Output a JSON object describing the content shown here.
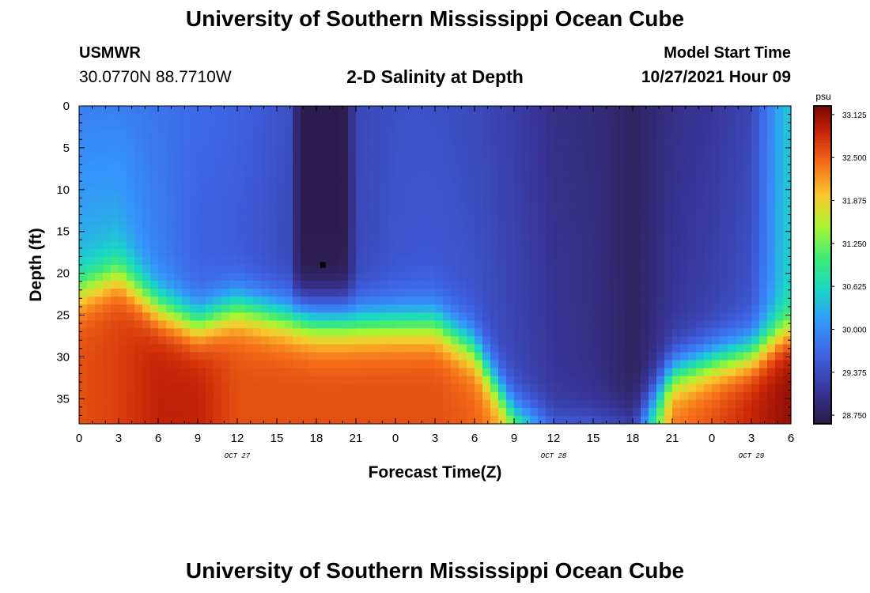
{
  "header": {
    "title": "University of Southern Mississippi Ocean Cube",
    "station_name": "USMWR",
    "station_coords": "30.0770N  88.7710W",
    "plot_title": "2-D Salinity at Depth",
    "model_start_label": "Model Start Time",
    "model_start_value": "10/27/2021 Hour 09"
  },
  "footer": {
    "title": "University of Southern Mississippi Ocean Cube"
  },
  "chart_data": {
    "type": "heatmap",
    "title": "2-D Salinity at Depth",
    "xlabel": "Forecast Time(Z)",
    "ylabel": "Depth (ft)",
    "x_tick_labels": [
      "0",
      "3",
      "6",
      "9",
      "12",
      "15",
      "18",
      "21",
      "0",
      "3",
      "6",
      "9",
      "12",
      "15",
      "18",
      "21",
      "0",
      "3",
      "6"
    ],
    "date_labels": [
      {
        "label": "OCT 27",
        "at_hour": 12
      },
      {
        "label": "OCT 28",
        "at_hour": 36
      },
      {
        "label": "OCT 29",
        "at_hour": 51
      }
    ],
    "xlim_hours": [
      0,
      54
    ],
    "ylim_ft": [
      0,
      38
    ],
    "y_ticks": [
      0,
      5,
      10,
      15,
      20,
      25,
      30,
      35
    ],
    "colorbar": {
      "unit": "psu",
      "ticks": [
        "33.125",
        "32.500",
        "31.875",
        "31.250",
        "30.625",
        "30.000",
        "29.375",
        "28.750"
      ],
      "range": [
        28.625,
        33.25
      ]
    },
    "marker": {
      "hour": 18.5,
      "depth_ft": 19
    },
    "layers_psu_by_hour": [
      {
        "hour": 0,
        "surface": 29.9,
        "mid": 30.3,
        "bottom": 32.6,
        "interface_ft": 22
      },
      {
        "hour": 3,
        "surface": 29.9,
        "mid": 30.3,
        "bottom": 32.7,
        "interface_ft": 20
      },
      {
        "hour": 6,
        "surface": 29.8,
        "mid": 29.9,
        "bottom": 32.9,
        "interface_ft": 24
      },
      {
        "hour": 9,
        "surface": 29.7,
        "mid": 29.6,
        "bottom": 32.9,
        "interface_ft": 26
      },
      {
        "hour": 12,
        "surface": 29.7,
        "mid": 29.6,
        "bottom": 32.6,
        "interface_ft": 24
      },
      {
        "hour": 15,
        "surface": 29.7,
        "mid": 29.6,
        "bottom": 32.6,
        "interface_ft": 25
      },
      {
        "hour": 18,
        "surface": 29.7,
        "mid": 29.6,
        "bottom": 32.6,
        "interface_ft": 26
      },
      {
        "hour": 21,
        "surface": 29.6,
        "mid": 29.6,
        "bottom": 32.6,
        "interface_ft": 26
      },
      {
        "hour": 24,
        "surface": 29.55,
        "mid": 29.6,
        "bottom": 32.6,
        "interface_ft": 26
      },
      {
        "hour": 27,
        "surface": 29.45,
        "mid": 29.55,
        "bottom": 32.6,
        "interface_ft": 26
      },
      {
        "hour": 30,
        "surface": 29.35,
        "mid": 29.45,
        "bottom": 32.5,
        "interface_ft": 29
      },
      {
        "hour": 33,
        "surface": 29.2,
        "mid": 29.3,
        "bottom": 32.1,
        "interface_ft": 37
      },
      {
        "hour": 36,
        "surface": 29.0,
        "mid": 29.1,
        "bottom": 30.2,
        "interface_ft": 38.5
      },
      {
        "hour": 39,
        "surface": 28.95,
        "mid": 29.0,
        "bottom": 30.2,
        "interface_ft": 38.5
      },
      {
        "hour": 42,
        "surface": 28.8,
        "mid": 28.8,
        "bottom": 29.6,
        "interface_ft": 38
      },
      {
        "hour": 45,
        "surface": 29.0,
        "mid": 29.1,
        "bottom": 32.4,
        "interface_ft": 32
      },
      {
        "hour": 48,
        "surface": 29.1,
        "mid": 29.25,
        "bottom": 32.6,
        "interface_ft": 30.5
      },
      {
        "hour": 51,
        "surface": 29.3,
        "mid": 29.45,
        "bottom": 32.9,
        "interface_ft": 29.5
      },
      {
        "hour": 53.5,
        "surface": 30.4,
        "mid": 30.5,
        "bottom": 33.1,
        "interface_ft": 27
      }
    ],
    "low_salinity_core": {
      "hour_range": [
        16,
        21
      ],
      "depth_range_ft": [
        0,
        22
      ],
      "psu": 28.7
    }
  }
}
